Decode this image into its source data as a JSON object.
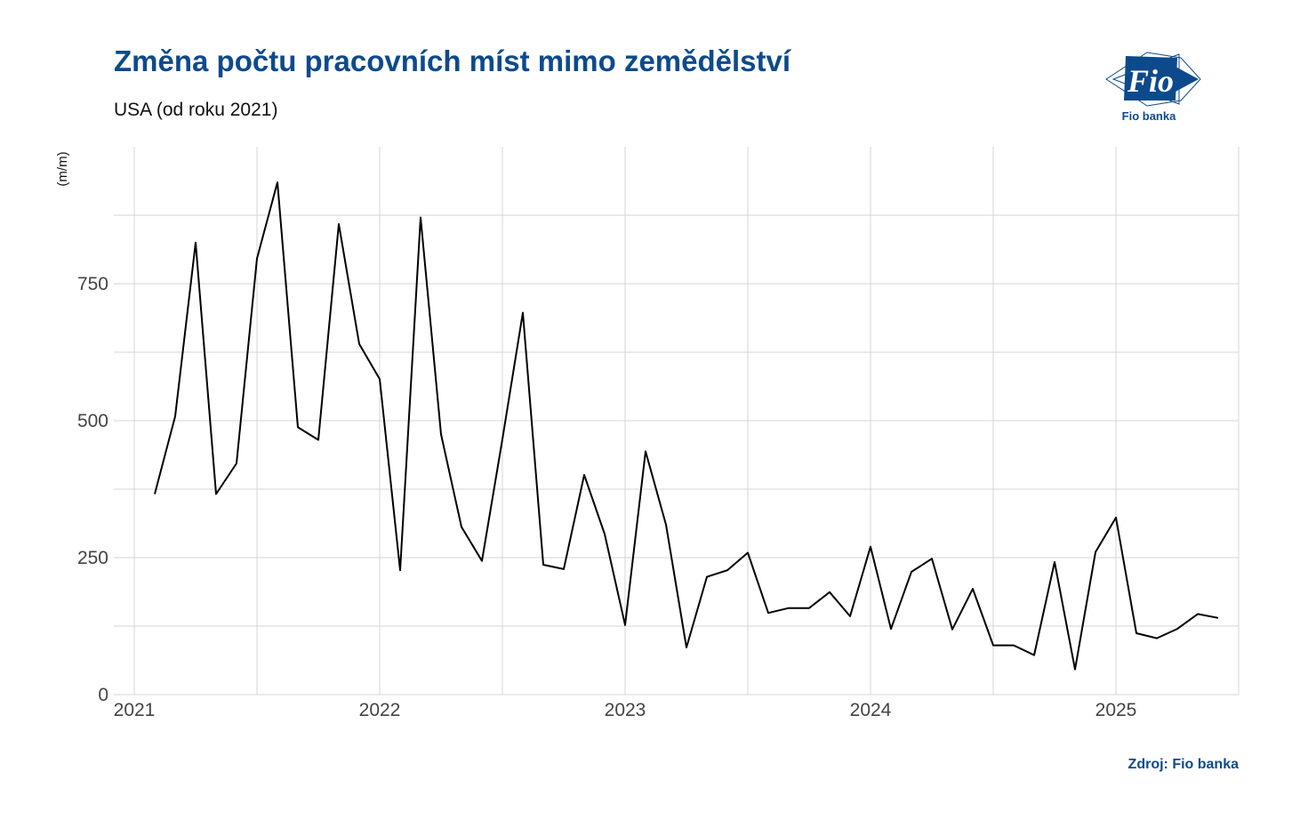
{
  "header": {
    "title": "Změna počtu pracovních míst mimo zemědělství",
    "subtitle": "USA (od roku 2021)"
  },
  "logo": {
    "text": "Fio",
    "caption": "Fio banka",
    "color": "#0d4a8c"
  },
  "footer": {
    "source": "Zdroj: Fio banka"
  },
  "chart_data": {
    "type": "line",
    "ylabel": "(m/m)",
    "xlabel": "",
    "ylim": [
      0,
      1000
    ],
    "xlim": [
      "2020-12",
      "2025-07"
    ],
    "yticks": [
      0,
      250,
      500,
      750
    ],
    "xticks": [
      "2021",
      "2022",
      "2023",
      "2024",
      "2025"
    ],
    "grid": true,
    "line_color": "#000000",
    "series": [
      {
        "x": [
          "2021-02",
          "2021-03",
          "2021-04",
          "2021-05",
          "2021-06",
          "2021-07",
          "2021-08",
          "2021-09",
          "2021-10",
          "2021-11",
          "2021-12",
          "2022-01",
          "2022-02",
          "2022-03",
          "2022-04",
          "2022-05",
          "2022-06",
          "2022-07",
          "2022-08",
          "2022-09",
          "2022-10",
          "2022-11",
          "2022-12",
          "2023-01",
          "2023-02",
          "2023-03",
          "2023-04",
          "2023-05",
          "2023-06",
          "2023-07",
          "2023-08",
          "2023-09",
          "2023-10",
          "2023-11",
          "2023-12",
          "2024-01",
          "2024-02",
          "2024-03",
          "2024-04",
          "2024-05",
          "2024-06",
          "2024-07",
          "2024-08",
          "2024-09",
          "2024-10",
          "2024-11",
          "2024-12",
          "2025-01",
          "2025-02",
          "2025-03",
          "2025-04",
          "2025-05",
          "2025-06"
        ],
        "values": [
          366,
          508,
          825,
          366,
          422,
          796,
          935,
          488,
          465,
          859,
          640,
          576,
          227,
          871,
          475,
          306,
          244,
          466,
          697,
          237,
          229,
          401,
          293,
          127,
          444,
          310,
          86,
          215,
          227,
          259,
          149,
          158,
          158,
          187,
          143,
          270,
          120,
          224,
          248,
          119,
          193,
          90,
          90,
          72,
          242,
          46,
          260,
          323,
          112,
          103,
          120,
          147,
          140
        ]
      }
    ]
  }
}
